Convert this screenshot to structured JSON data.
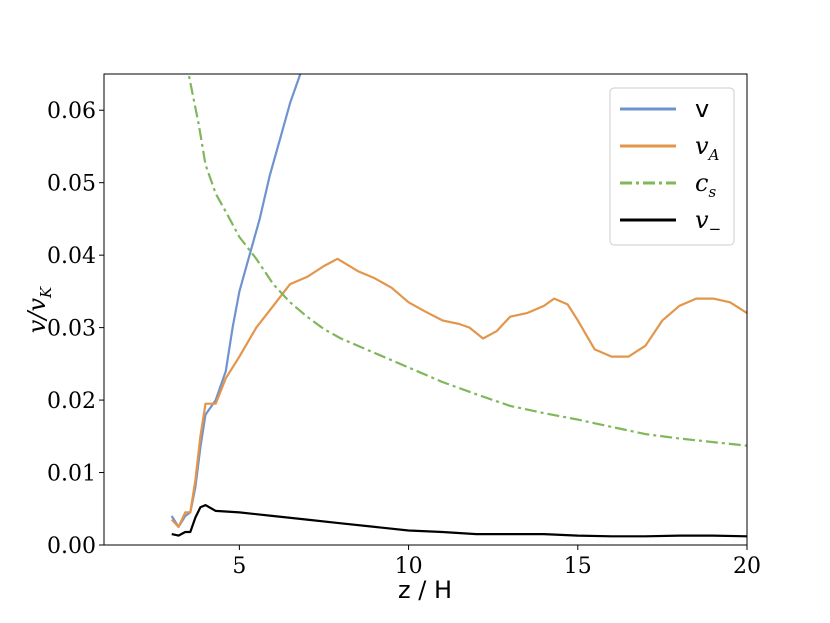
{
  "chart_data": {
    "type": "line",
    "xlabel": "z / H",
    "ylabel": {
      "main": "v/v",
      "sub": "K"
    },
    "xlim": [
      1,
      20
    ],
    "ylim": [
      0,
      0.065
    ],
    "xticks": [
      5,
      10,
      15,
      20
    ],
    "xtick_labels": [
      "5",
      "10",
      "15",
      "20"
    ],
    "yticks": [
      0,
      0.01,
      0.02,
      0.03,
      0.04,
      0.05,
      0.06
    ],
    "ytick_labels": [
      "0.00",
      "0.01",
      "0.02",
      "0.03",
      "0.04",
      "0.05",
      "0.06"
    ],
    "grid": false,
    "legend_position": "upper right",
    "series": [
      {
        "name": "v",
        "legend": {
          "main": "v",
          "sub": ""
        },
        "color": "#6f93cf",
        "style": "solid",
        "points": [
          [
            3.0,
            0.004
          ],
          [
            3.2,
            0.0025
          ],
          [
            3.4,
            0.004
          ],
          [
            3.55,
            0.0045
          ],
          [
            3.7,
            0.008
          ],
          [
            3.85,
            0.0135
          ],
          [
            4.0,
            0.018
          ],
          [
            4.3,
            0.02
          ],
          [
            4.6,
            0.024
          ],
          [
            4.8,
            0.03
          ],
          [
            5.0,
            0.035
          ],
          [
            5.3,
            0.04
          ],
          [
            5.6,
            0.045
          ],
          [
            5.9,
            0.051
          ],
          [
            6.2,
            0.056
          ],
          [
            6.5,
            0.061
          ],
          [
            6.8,
            0.065
          ]
        ]
      },
      {
        "name": "v_A",
        "legend": {
          "main": "v",
          "sub": "A"
        },
        "color": "#e3964b",
        "style": "solid",
        "points": [
          [
            3.0,
            0.0035
          ],
          [
            3.2,
            0.0025
          ],
          [
            3.4,
            0.0045
          ],
          [
            3.55,
            0.0045
          ],
          [
            3.7,
            0.009
          ],
          [
            3.85,
            0.015
          ],
          [
            4.0,
            0.0195
          ],
          [
            4.3,
            0.0195
          ],
          [
            4.6,
            0.023
          ],
          [
            5.0,
            0.026
          ],
          [
            5.5,
            0.03
          ],
          [
            6.0,
            0.033
          ],
          [
            6.5,
            0.036
          ],
          [
            7.0,
            0.037
          ],
          [
            7.5,
            0.0385
          ],
          [
            7.9,
            0.0395
          ],
          [
            8.5,
            0.0378
          ],
          [
            9.0,
            0.0368
          ],
          [
            9.5,
            0.0355
          ],
          [
            10.0,
            0.0335
          ],
          [
            10.5,
            0.0322
          ],
          [
            11.0,
            0.031
          ],
          [
            11.5,
            0.0305
          ],
          [
            11.8,
            0.03
          ],
          [
            12.2,
            0.0285
          ],
          [
            12.6,
            0.0295
          ],
          [
            13.0,
            0.0315
          ],
          [
            13.5,
            0.032
          ],
          [
            14.0,
            0.033
          ],
          [
            14.3,
            0.034
          ],
          [
            14.7,
            0.0332
          ],
          [
            15.0,
            0.031
          ],
          [
            15.5,
            0.027
          ],
          [
            16.0,
            0.026
          ],
          [
            16.5,
            0.026
          ],
          [
            17.0,
            0.0275
          ],
          [
            17.5,
            0.031
          ],
          [
            18.0,
            0.033
          ],
          [
            18.5,
            0.034
          ],
          [
            19.0,
            0.034
          ],
          [
            19.5,
            0.0335
          ],
          [
            20.0,
            0.032
          ]
        ]
      },
      {
        "name": "c_s",
        "legend": {
          "main": "c",
          "sub": "s"
        },
        "color": "#7fb75a",
        "style": "dashdot",
        "points": [
          [
            3.3,
            0.07
          ],
          [
            3.5,
            0.065
          ],
          [
            3.8,
            0.058
          ],
          [
            4.0,
            0.0525
          ],
          [
            4.3,
            0.0485
          ],
          [
            4.6,
            0.046
          ],
          [
            5.0,
            0.0425
          ],
          [
            5.5,
            0.0395
          ],
          [
            6.0,
            0.036
          ],
          [
            6.5,
            0.0335
          ],
          [
            7.0,
            0.0315
          ],
          [
            7.5,
            0.0298
          ],
          [
            8.0,
            0.0285
          ],
          [
            9.0,
            0.0265
          ],
          [
            10.0,
            0.0245
          ],
          [
            11.0,
            0.0225
          ],
          [
            12.0,
            0.0208
          ],
          [
            13.0,
            0.0192
          ],
          [
            14.0,
            0.0182
          ],
          [
            15.0,
            0.0173
          ],
          [
            16.0,
            0.0163
          ],
          [
            17.0,
            0.0153
          ],
          [
            18.0,
            0.0147
          ],
          [
            19.0,
            0.0142
          ],
          [
            20.0,
            0.0137
          ]
        ]
      },
      {
        "name": "v_-",
        "legend": {
          "main": "v",
          "sub": "−"
        },
        "color": "#000000",
        "style": "solid",
        "points": [
          [
            3.0,
            0.0015
          ],
          [
            3.2,
            0.0013
          ],
          [
            3.4,
            0.0018
          ],
          [
            3.55,
            0.0018
          ],
          [
            3.7,
            0.0038
          ],
          [
            3.85,
            0.0052
          ],
          [
            4.0,
            0.0055
          ],
          [
            4.3,
            0.0047
          ],
          [
            5.0,
            0.0045
          ],
          [
            6.0,
            0.004
          ],
          [
            7.0,
            0.0035
          ],
          [
            8.0,
            0.003
          ],
          [
            9.0,
            0.0025
          ],
          [
            10.0,
            0.002
          ],
          [
            11.0,
            0.0018
          ],
          [
            12.0,
            0.0015
          ],
          [
            13.0,
            0.0015
          ],
          [
            14.0,
            0.0015
          ],
          [
            15.0,
            0.0013
          ],
          [
            16.0,
            0.0012
          ],
          [
            17.0,
            0.0012
          ],
          [
            18.0,
            0.0013
          ],
          [
            19.0,
            0.0013
          ],
          [
            20.0,
            0.0012
          ]
        ]
      }
    ]
  }
}
